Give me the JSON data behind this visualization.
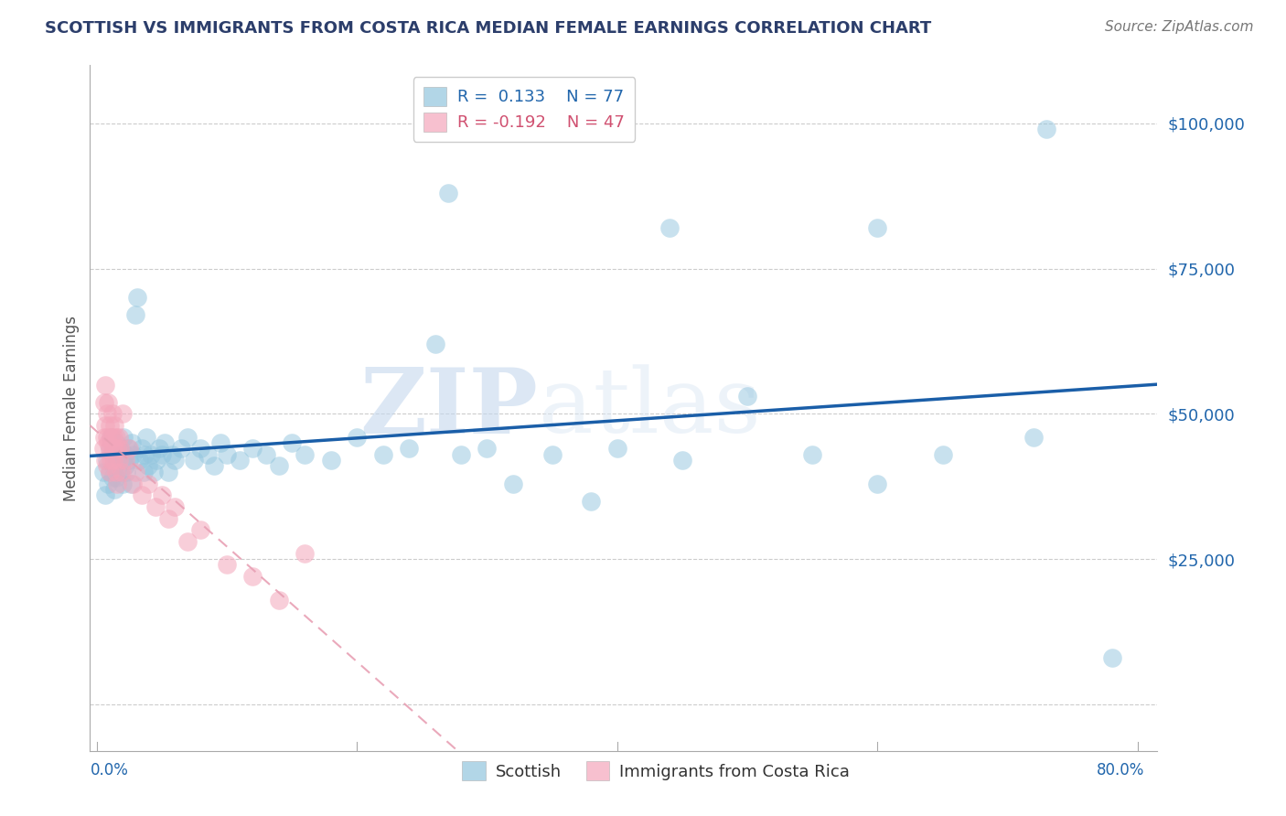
{
  "title": "SCOTTISH VS IMMIGRANTS FROM COSTA RICA MEDIAN FEMALE EARNINGS CORRELATION CHART",
  "source": "Source: ZipAtlas.com",
  "ylabel": "Median Female Earnings",
  "yticks": [
    0,
    25000,
    50000,
    75000,
    100000
  ],
  "ytick_labels": [
    "",
    "$25,000",
    "$50,000",
    "$75,000",
    "$100,000"
  ],
  "ymin": -8000,
  "ymax": 110000,
  "xmin": -0.005,
  "xmax": 0.815,
  "watermark_zip": "ZIP",
  "watermark_atlas": "atlas",
  "legend_r1": "R =  0.133",
  "legend_n1": "N = 77",
  "legend_r2": "R = -0.192",
  "legend_n2": "N = 47",
  "blue_color": "#92c5de",
  "pink_color": "#f4a6bb",
  "blue_line_color": "#1a5ea8",
  "pink_line_color": "#e8a0b4",
  "title_color": "#2c3e6b",
  "axis_label_color": "#2166ac",
  "ylabel_color": "#555555",
  "source_color": "#777777",
  "blue_scatter": {
    "x": [
      0.005,
      0.007,
      0.008,
      0.009,
      0.01,
      0.01,
      0.011,
      0.012,
      0.013,
      0.013,
      0.014,
      0.015,
      0.015,
      0.016,
      0.017,
      0.018,
      0.019,
      0.02,
      0.02,
      0.021,
      0.022,
      0.022,
      0.023,
      0.024,
      0.025,
      0.026,
      0.027,
      0.028,
      0.03,
      0.031,
      0.033,
      0.035,
      0.036,
      0.037,
      0.038,
      0.04,
      0.042,
      0.044,
      0.046,
      0.048,
      0.05,
      0.052,
      0.055,
      0.058,
      0.06,
      0.065,
      0.07,
      0.075,
      0.08,
      0.085,
      0.09,
      0.095,
      0.1,
      0.11,
      0.12,
      0.13,
      0.14,
      0.15,
      0.16,
      0.18,
      0.2,
      0.22,
      0.24,
      0.26,
      0.28,
      0.3,
      0.32,
      0.35,
      0.38,
      0.4,
      0.45,
      0.5,
      0.55,
      0.6,
      0.65,
      0.72,
      0.78
    ],
    "y": [
      40000,
      36000,
      42000,
      38000,
      44000,
      40000,
      46000,
      39000,
      43000,
      41000,
      37000,
      45000,
      39000,
      42000,
      44000,
      40000,
      43000,
      38000,
      42000,
      46000,
      41000,
      43000,
      40000,
      44000,
      42000,
      38000,
      45000,
      43000,
      67000,
      70000,
      42000,
      44000,
      40000,
      43000,
      46000,
      41000,
      43000,
      40000,
      42000,
      44000,
      43000,
      45000,
      40000,
      43000,
      42000,
      44000,
      46000,
      42000,
      44000,
      43000,
      41000,
      45000,
      43000,
      42000,
      44000,
      43000,
      41000,
      45000,
      43000,
      42000,
      46000,
      43000,
      44000,
      62000,
      43000,
      44000,
      38000,
      43000,
      35000,
      44000,
      42000,
      53000,
      43000,
      38000,
      43000,
      46000,
      8000
    ],
    "outliers": {
      "x": [
        0.27,
        0.44,
        0.6,
        0.73
      ],
      "y": [
        88000,
        82000,
        82000,
        99000
      ]
    }
  },
  "pink_scatter": {
    "x": [
      0.005,
      0.006,
      0.006,
      0.007,
      0.007,
      0.007,
      0.008,
      0.008,
      0.008,
      0.009,
      0.009,
      0.01,
      0.01,
      0.01,
      0.011,
      0.011,
      0.012,
      0.012,
      0.013,
      0.013,
      0.014,
      0.014,
      0.015,
      0.015,
      0.016,
      0.016,
      0.017,
      0.017,
      0.018,
      0.019,
      0.02,
      0.022,
      0.025,
      0.028,
      0.03,
      0.035,
      0.04,
      0.045,
      0.05,
      0.055,
      0.06,
      0.07,
      0.08,
      0.1,
      0.12,
      0.14,
      0.16
    ],
    "y": [
      44000,
      52000,
      46000,
      55000,
      48000,
      42000,
      50000,
      46000,
      41000,
      52000,
      45000,
      48000,
      44000,
      40000,
      46000,
      42000,
      50000,
      44000,
      46000,
      42000,
      48000,
      44000,
      46000,
      40000,
      44000,
      38000,
      46000,
      42000,
      44000,
      40000,
      50000,
      42000,
      44000,
      38000,
      40000,
      36000,
      38000,
      34000,
      36000,
      32000,
      34000,
      28000,
      30000,
      24000,
      22000,
      18000,
      26000
    ]
  }
}
